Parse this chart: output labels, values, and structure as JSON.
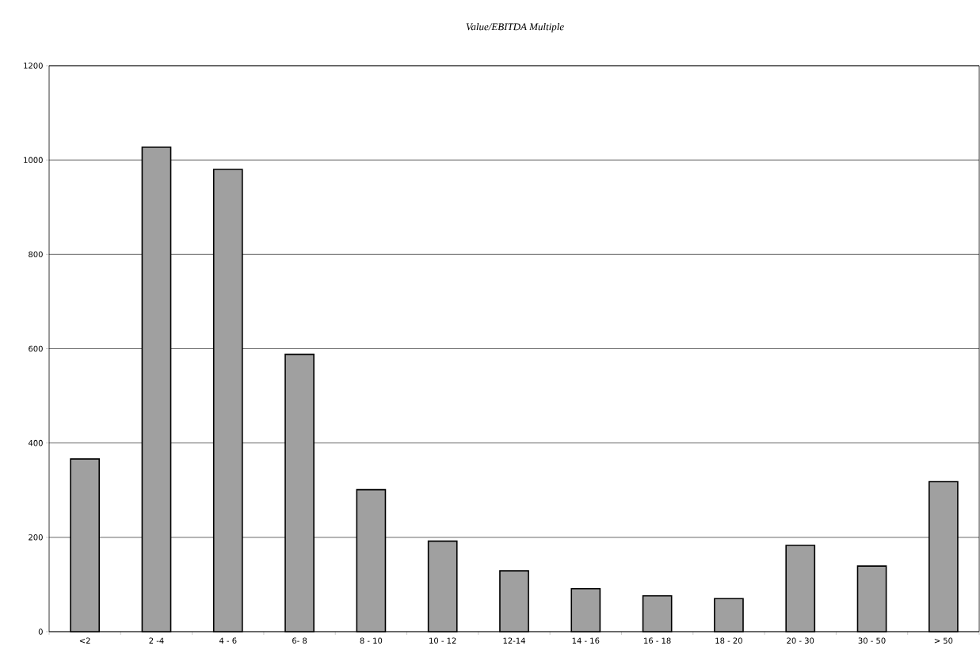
{
  "chart_data": {
    "type": "bar",
    "title": "Value/EBITDA Multiple",
    "categories": [
      "<2",
      "2 -4",
      "4 - 6",
      "6- 8",
      "8 - 10",
      "10 - 12",
      "12-14",
      "14 - 16",
      "16 - 18",
      "18 - 20",
      "20 - 30",
      "30 - 50",
      "> 50"
    ],
    "values": [
      366,
      1027,
      980,
      588,
      301,
      192,
      129,
      91,
      76,
      70,
      183,
      139,
      318
    ],
    "color": "#a0a0a0",
    "ylim": [
      0,
      1200
    ],
    "yticks": [
      0,
      200,
      400,
      600,
      800,
      1000,
      1200
    ],
    "grid": "y"
  }
}
